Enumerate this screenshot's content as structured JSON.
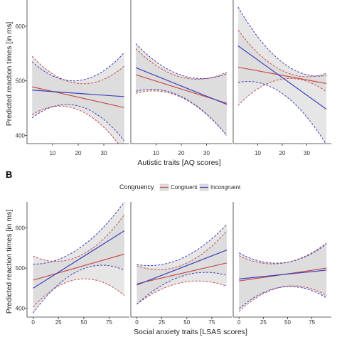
{
  "colors": {
    "congruent": "#c94c4c",
    "incongruent": "#3f3fbf",
    "band": "#d6d6d6",
    "axis": "#333333"
  },
  "legend": {
    "title": "Congruency",
    "items": [
      "Congruent",
      "Incongruent"
    ]
  },
  "chart_data": [
    {
      "panel_label": "",
      "type": "line",
      "ylabel": "Predicted reaction times [in ms]",
      "xlabel": "Autistic traits [AQ scores]",
      "ylim": [
        385,
        648
      ],
      "yticks": [
        400,
        500,
        600
      ],
      "xticks": [
        10,
        20,
        30
      ],
      "panels": [
        {
          "xlim": [
            0,
            40
          ],
          "series": [
            {
              "name": "Congruent",
              "x": [
                2,
                38
              ],
              "y": [
                489,
                451
              ],
              "lower": [
                438,
                370
              ],
              "upper": [
                545,
                527
              ]
            },
            {
              "name": "Incongruent",
              "x": [
                2,
                38
              ],
              "y": [
                483,
                471
              ],
              "lower": [
                432,
                390
              ],
              "upper": [
                535,
                552
              ]
            }
          ]
        },
        {
          "xlim": [
            0,
            40
          ],
          "series": [
            {
              "name": "Congruent",
              "x": [
                2,
                38
              ],
              "y": [
                511,
                459
              ],
              "lower": [
                477,
                400
              ],
              "upper": [
                559,
                516
              ]
            },
            {
              "name": "Incongruent",
              "x": [
                2,
                38
              ],
              "y": [
                524,
                457
              ],
              "lower": [
                481,
                400
              ],
              "upper": [
                568,
                513
              ]
            }
          ]
        },
        {
          "xlim": [
            0,
            40
          ],
          "series": [
            {
              "name": "Congruent",
              "x": [
                2,
                38
              ],
              "y": [
                525,
                495
              ],
              "lower": [
                455,
                480
              ],
              "upper": [
                593,
                514
              ]
            },
            {
              "name": "Incongruent",
              "x": [
                2,
                38
              ],
              "y": [
                564,
                448
              ],
              "lower": [
                497,
                383
              ],
              "upper": [
                635,
                510
              ]
            }
          ]
        }
      ]
    },
    {
      "panel_label": "B",
      "type": "line",
      "ylabel": "Predicted reaction times [in ms]",
      "xlabel": "Social anxiety traits [LSAS scores]",
      "ylim": [
        378,
        665
      ],
      "yticks": [
        400,
        500,
        600
      ],
      "xticks": [
        0,
        25,
        50,
        75
      ],
      "panels": [
        {
          "xlim": [
            -6,
            95
          ],
          "series": [
            {
              "name": "Congruent",
              "x": [
                0,
                90
              ],
              "y": [
                470,
                535
              ],
              "lower": [
                403,
                432
              ],
              "upper": [
                530,
                633
              ]
            },
            {
              "name": "Incongruent",
              "x": [
                0,
                90
              ],
              "y": [
                450,
                593
              ],
              "lower": [
                388,
                495
              ],
              "upper": [
                510,
                665
              ]
            }
          ]
        },
        {
          "xlim": [
            -6,
            95
          ],
          "series": [
            {
              "name": "Congruent",
              "x": [
                0,
                90
              ],
              "y": [
                461,
                513
              ],
              "lower": [
                410,
                455
              ],
              "upper": [
                506,
                593
              ]
            },
            {
              "name": "Incongruent",
              "x": [
                0,
                90
              ],
              "y": [
                458,
                545
              ],
              "lower": [
                410,
                482
              ],
              "upper": [
                509,
                609
              ]
            }
          ]
        },
        {
          "xlim": [
            -6,
            95
          ],
          "series": [
            {
              "name": "Congruent",
              "x": [
                0,
                90
              ],
              "y": [
                468,
                500
              ],
              "lower": [
                392,
                432
              ],
              "upper": [
                531,
                563
              ]
            },
            {
              "name": "Incongruent",
              "x": [
                0,
                90
              ],
              "y": [
                473,
                495
              ],
              "lower": [
                399,
                426
              ],
              "upper": [
                538,
                560
              ]
            }
          ]
        }
      ]
    }
  ]
}
